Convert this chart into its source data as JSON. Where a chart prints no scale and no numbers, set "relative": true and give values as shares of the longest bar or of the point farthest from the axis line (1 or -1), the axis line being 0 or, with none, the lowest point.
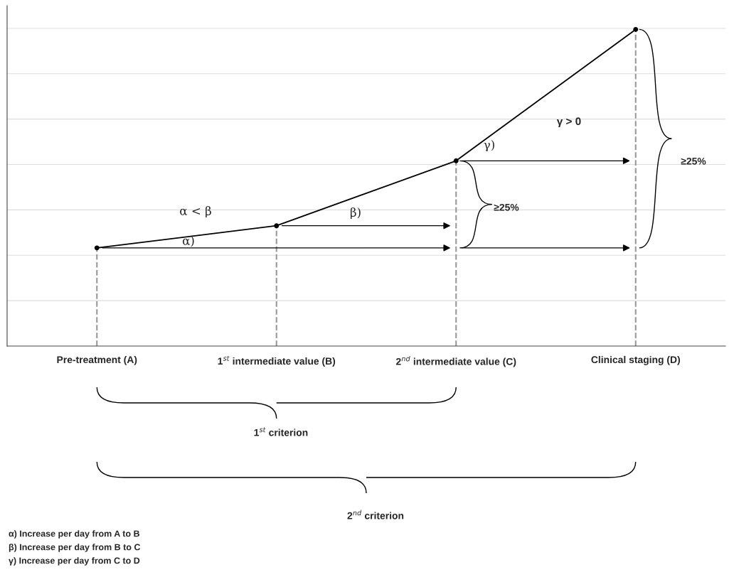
{
  "chart_data": {
    "type": "line",
    "relative": true,
    "categories": [
      "Pre-treatment (A)",
      "1$^{st}$ intermediate value (B)",
      "2$^{nd}$ intermediate value (C)",
      "Clinical staging (D)"
    ],
    "series": [
      {
        "color": "#000000",
        "values": [
          0.31,
          0.38,
          0.585,
          1.0
        ]
      }
    ],
    "marker": "circle",
    "line_style": "solid",
    "grid": "y",
    "tick_labels": "x",
    "legend": false,
    "ref_lines": [
      {
        "axis": "x",
        "value": "Pre-treatment (A)",
        "color": "#999999",
        "line_style": "dashed"
      },
      {
        "axis": "x",
        "value": "1$^{st}$ intermediate value (B)",
        "color": "#999999",
        "line_style": "dashed"
      },
      {
        "axis": "x",
        "value": "2$^{nd}$ intermediate value (C)",
        "color": "#999999",
        "line_style": "dashed"
      },
      {
        "axis": "x",
        "value": "Clinical staging (D)",
        "color": "#999999",
        "line_style": "dashed"
      }
    ],
    "annotations": [
      "α)",
      "α < β",
      "β)",
      "γ)",
      "γ > 0",
      "≥25%",
      "≥25%",
      "1$^{st}$ criterion",
      "2$^{nd}$ criterion",
      "α) Increase per day from A to B",
      "β) Increase per day from B to C",
      "γ) Increase per day from C to D"
    ]
  }
}
